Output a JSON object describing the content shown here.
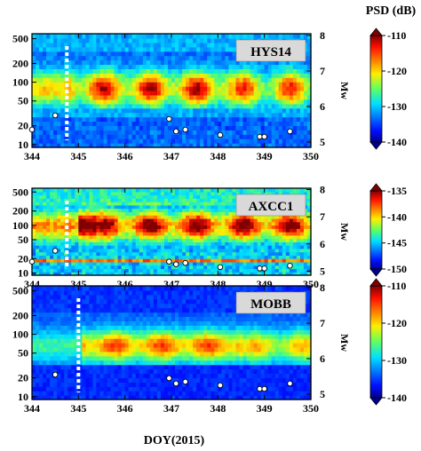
{
  "figure": {
    "colorbar_title": "PSD (dB)",
    "xlabel": "DOY(2015)",
    "right_ylabel": "Mw"
  },
  "chart_data": [
    {
      "type": "heatmap",
      "station": "HYS14",
      "xlim": [
        344,
        350
      ],
      "x_ticks": [
        "344",
        "345",
        "346",
        "347",
        "348",
        "349",
        "350"
      ],
      "y_scale": "log",
      "y_ticks": [
        "10",
        "20",
        "50",
        "100",
        "200",
        "500"
      ],
      "y_tick_values": [
        10,
        20,
        50,
        100,
        200,
        500
      ],
      "mw_ticks": [
        "5",
        "6",
        "7",
        "8"
      ],
      "colorbar": {
        "min": -140,
        "max": -110,
        "ticks": [
          "-110",
          "-120",
          "-130",
          "-140"
        ]
      },
      "dashed_line_doy": 344.75,
      "earthquakes": [
        {
          "doy": 344.0,
          "mw": 5.35
        },
        {
          "doy": 344.5,
          "mw": 5.75
        },
        {
          "doy": 346.95,
          "mw": 5.65
        },
        {
          "doy": 347.1,
          "mw": 5.3
        },
        {
          "doy": 347.3,
          "mw": 5.35
        },
        {
          "doy": 348.05,
          "mw": 5.2
        },
        {
          "doy": 348.9,
          "mw": 5.15
        },
        {
          "doy": 349.0,
          "mw": 5.15
        },
        {
          "doy": 349.55,
          "mw": 5.3
        }
      ]
    },
    {
      "type": "heatmap",
      "station": "AXCC1",
      "xlim": [
        344,
        350
      ],
      "x_ticks": [
        "344",
        "345",
        "346",
        "347",
        "348",
        "349",
        "350"
      ],
      "y_scale": "log",
      "y_ticks": [
        "10",
        "20",
        "50",
        "100",
        "200",
        "500"
      ],
      "y_tick_values": [
        10,
        20,
        50,
        100,
        200,
        500
      ],
      "mw_ticks": [
        "5",
        "6",
        "7",
        "8"
      ],
      "colorbar": {
        "min": -150,
        "max": -135,
        "ticks": [
          "-135",
          "-140",
          "-145",
          "-150"
        ]
      },
      "dashed_line_doy": 344.75,
      "earthquakes": [
        {
          "doy": 344.0,
          "mw": 5.35
        },
        {
          "doy": 344.5,
          "mw": 5.75
        },
        {
          "doy": 346.95,
          "mw": 5.35
        },
        {
          "doy": 347.1,
          "mw": 5.25
        },
        {
          "doy": 347.3,
          "mw": 5.3
        },
        {
          "doy": 348.05,
          "mw": 5.15
        },
        {
          "doy": 348.9,
          "mw": 5.1
        },
        {
          "doy": 349.0,
          "mw": 5.1
        },
        {
          "doy": 349.55,
          "mw": 5.2
        }
      ]
    },
    {
      "type": "heatmap",
      "station": "MOBB",
      "xlim": [
        344,
        350
      ],
      "x_ticks": [
        "344",
        "345",
        "346",
        "347",
        "348",
        "349",
        "350"
      ],
      "y_scale": "log",
      "y_ticks": [
        "10",
        "20",
        "50",
        "100",
        "200",
        "500"
      ],
      "y_tick_values": [
        10,
        20,
        50,
        100,
        200,
        500
      ],
      "mw_ticks": [
        "5",
        "6",
        "7",
        "8"
      ],
      "colorbar": {
        "min": -140,
        "max": -110,
        "ticks": [
          "-110",
          "-120",
          "-130",
          "-140"
        ]
      },
      "dashed_line_doy": 345.0,
      "earthquakes": [
        {
          "doy": 344.5,
          "mw": 5.55
        },
        {
          "doy": 346.95,
          "mw": 5.45
        },
        {
          "doy": 347.1,
          "mw": 5.3
        },
        {
          "doy": 347.3,
          "mw": 5.35
        },
        {
          "doy": 348.05,
          "mw": 5.25
        },
        {
          "doy": 348.9,
          "mw": 5.15
        },
        {
          "doy": 349.0,
          "mw": 5.15
        },
        {
          "doy": 349.55,
          "mw": 5.3
        }
      ]
    }
  ]
}
